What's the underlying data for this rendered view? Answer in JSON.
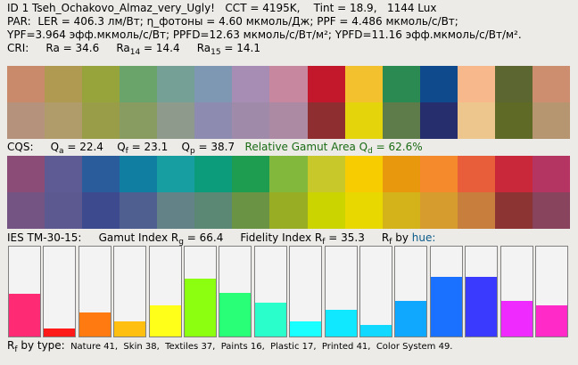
{
  "header": {
    "line1": "ID 1 Tseh_Ochakovo_Almaz_very_Ugly!   CCT = 4195K,    Tint = 18.9,   1144 Lux",
    "line2": "PAR:  LER = 406.3 лм/Вт; η_фотоны = 4.60 мкмоль/Дж; PPF = 4.486 мкмоль/с/Вт;",
    "line3": "YPF=3.964 эфф.мкмоль/с/Вт; PPFD=12.63 мкмоль/с/Вт/м²; YPFD=11.16 эфф.мкмоль/с/Вт/м².",
    "cri": {
      "label": "CRI:",
      "ra_label": "Ra = 34.6",
      "ra14_name": "Ra",
      "ra14_sub": "14",
      "ra14_val": " = 14.4",
      "ra15_name": "Ra",
      "ra15_sub": "15",
      "ra15_val": " = 14.1"
    }
  },
  "cri_swatches": {
    "reference": [
      "#c98a6c",
      "#b09a52",
      "#97a43c",
      "#6aa46b",
      "#74a096",
      "#7e98b4",
      "#a78cb4",
      "#c7879e",
      "#c3182c",
      "#f3c12e",
      "#2b8a52",
      "#0f4a8c",
      "#f7b98c",
      "#5b6630",
      "#cd8e70"
    ],
    "test": [
      "#b5927c",
      "#af9c6a",
      "#999d48",
      "#889b60",
      "#8d9a8c",
      "#8d8cb0",
      "#a08aaa",
      "#ad8aa4",
      "#8f2e30",
      "#e4d40c",
      "#5d7c4a",
      "#262e6e",
      "#ecc68c",
      "#5f6a26",
      "#b59670"
    ]
  },
  "cqs": {
    "label": "CQS:",
    "qa_name": "Q",
    "qa_sub": "a",
    "qa_val": " = 22.4",
    "qf_name": "Q",
    "qf_sub": "f",
    "qf_val": " = 23.1",
    "qp_name": "Q",
    "qp_sub": "p",
    "qp_val": " = 38.7",
    "gamut_label": "Relative Gamut Area Q",
    "gamut_sub": "d",
    "gamut_val": " = 62.6%"
  },
  "cqs_swatches": {
    "reference": [
      "#8c4c78",
      "#5e5a94",
      "#2a5c9c",
      "#0f7ea0",
      "#179ea0",
      "#0c9c7c",
      "#1e9c50",
      "#82b83c",
      "#c8c82a",
      "#f7cc00",
      "#e8980c",
      "#f58a2c",
      "#e85e3a",
      "#c8283a",
      "#b43462"
    ],
    "test": [
      "#745482",
      "#5c5890",
      "#3e4a8e",
      "#4f6090",
      "#628288",
      "#5a8874",
      "#6a9444",
      "#98ac24",
      "#ccd400",
      "#e8d800",
      "#d4b21a",
      "#d69c2e",
      "#c87e3c",
      "#8c3434",
      "#88445c"
    ]
  },
  "ies": {
    "label": "IES TM-30-15:",
    "rg_label": "Gamut Index R",
    "rg_sub": "g",
    "rg_val": " = 66.4",
    "rf_label": "Fidelity Index R",
    "rf_sub": "f",
    "rf_val": " = 35.3",
    "rf_hue_name": "R",
    "rf_hue_sub": "f",
    "rf_hue_by": " by ",
    "rf_hue_word": "hue:"
  },
  "rf_by_hue": {
    "fractions": [
      0.48,
      0.09,
      0.27,
      0.17,
      0.35,
      0.64,
      0.49,
      0.38,
      0.17,
      0.3,
      0.13,
      0.4,
      0.66,
      0.66,
      0.4,
      0.35
    ],
    "colors": [
      "#ff2a74",
      "#ff1a1a",
      "#ff7a10",
      "#ffbf10",
      "#ffff1a",
      "#8cff10",
      "#2aff78",
      "#2affcc",
      "#1affff",
      "#10e8ff",
      "#10d8ff",
      "#10a8ff",
      "#1a70ff",
      "#3a3aff",
      "#ee2aff",
      "#ff2ac8"
    ]
  },
  "footer": {
    "rf_name": "R",
    "rf_sub": "f",
    "by_type": " by type:",
    "types": "  Nature 41,  Skin 38,  Textiles 37,  Paints 16,  Plastic 17,  Printed 41,  Color System 49."
  }
}
